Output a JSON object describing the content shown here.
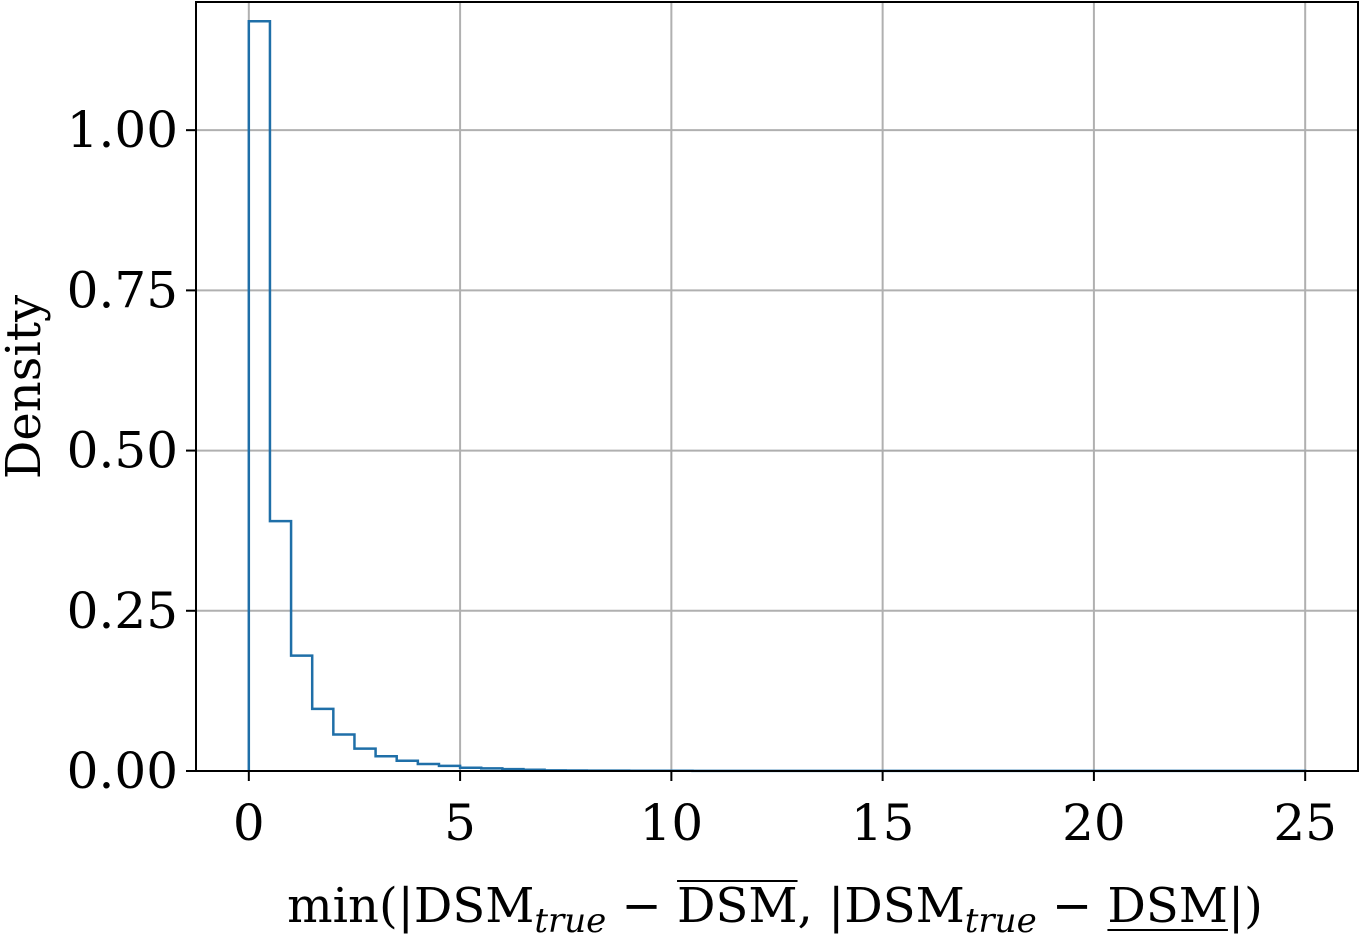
{
  "chart_data": {
    "type": "bar",
    "title": "",
    "xlabel": "min(|DSMtrue − DSM, |DSMtrue − DSM|)",
    "xlabel_parts": {
      "open": "min(|DSM",
      "sub1": "true",
      "minus1": " − ",
      "overline_term": "DSM",
      "sep": ",  |DSM",
      "sub2": "true",
      "minus2": " − ",
      "underline_term": "DSM",
      "close": "|)"
    },
    "ylabel": "Density",
    "xlim": [
      -1.25,
      26.25
    ],
    "ylim": [
      0,
      1.2
    ],
    "xticks": [
      0,
      5,
      10,
      15,
      20,
      25
    ],
    "xtick_labels": [
      "0",
      "5",
      "10",
      "15",
      "20",
      "25"
    ],
    "yticks": [
      0,
      0.25,
      0.5,
      0.75,
      1.0
    ],
    "ytick_labels": [
      "0.00",
      "0.25",
      "0.50",
      "0.75",
      "1.00"
    ],
    "grid": true,
    "histtype": "step",
    "color": "#1f6fa8",
    "bin_width": 0.5,
    "bin_edges": [
      0,
      0.5,
      1,
      1.5,
      2,
      2.5,
      3,
      3.5,
      4,
      4.5,
      5,
      5.5,
      6,
      6.5,
      7,
      7.5,
      8,
      8.5,
      9,
      9.5,
      10,
      10.5,
      11,
      11.5,
      12,
      12.5,
      13,
      13.5,
      14,
      14.5,
      15,
      15.5,
      16,
      16.5,
      17,
      17.5,
      18,
      18.5,
      19,
      19.5,
      20,
      20.5,
      21,
      21.5,
      22,
      22.5,
      23,
      23.5,
      24,
      24.5,
      25
    ],
    "values": [
      1.17,
      0.39,
      0.18,
      0.097,
      0.057,
      0.035,
      0.023,
      0.016,
      0.011,
      0.008,
      0.005,
      0.004,
      0.003,
      0.002,
      0.001,
      0.0008,
      0.0006,
      0.0005,
      0.0004,
      0.0003,
      0.0003,
      0.0002,
      0.0002,
      0.0002,
      0.0001,
      0.0001,
      0.0001,
      0.0001,
      0.0001,
      0.0001,
      0.0001,
      0.0001,
      0.0001,
      0.0001,
      0.0001,
      0.0001,
      0.0001,
      0.0001,
      0.0001,
      0.0001,
      0.0001,
      0.0001,
      0.0001,
      0.0001,
      0.0001,
      0.0001,
      0.0001,
      0.0001,
      0.0001,
      0.0001
    ]
  }
}
